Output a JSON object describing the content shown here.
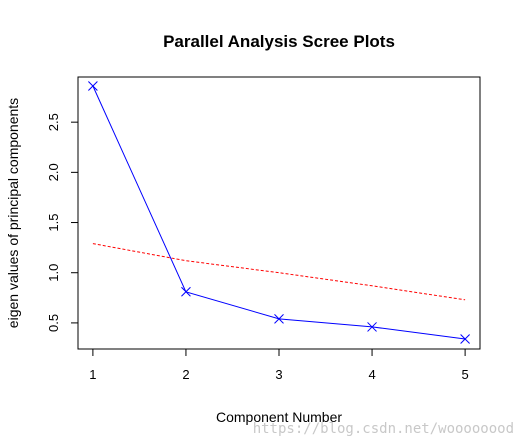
{
  "chart_data": {
    "type": "line",
    "title": "Parallel Analysis Scree Plots",
    "xlabel": "Component Number",
    "ylabel": "eigen values of principal components",
    "xlim": [
      0.84,
      5.16
    ],
    "ylim": [
      0.24,
      2.95
    ],
    "x_ticks": [
      1,
      2,
      3,
      4,
      5
    ],
    "x_tick_labels": [
      "1",
      "2",
      "3",
      "4",
      "5"
    ],
    "y_ticks": [
      0.5,
      1.0,
      1.5,
      2.0,
      2.5
    ],
    "y_tick_labels": [
      "0.5",
      "1.0",
      "1.5",
      "2.0",
      "2.5"
    ],
    "legend": "none",
    "grid": false,
    "series": [
      {
        "x": [
          1,
          2,
          3,
          4,
          5
        ],
        "values": [
          2.86,
          0.81,
          0.54,
          0.46,
          0.34
        ],
        "color": "#0000ff",
        "line_style": "solid",
        "marker": "x"
      },
      {
        "x": [
          1,
          2,
          3,
          4,
          5
        ],
        "values": [
          1.29,
          1.12,
          1.0,
          0.87,
          0.73
        ],
        "color": "#ff0000",
        "line_style": "dashed",
        "marker": "none"
      }
    ]
  },
  "watermark": "https://blog.csdn.net/woooooood"
}
